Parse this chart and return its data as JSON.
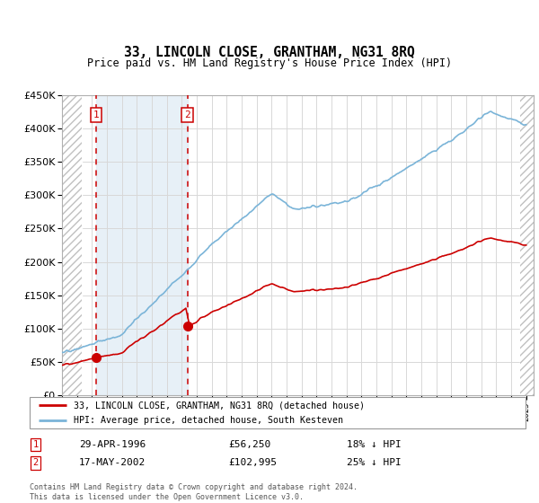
{
  "title": "33, LINCOLN CLOSE, GRANTHAM, NG31 8RQ",
  "subtitle": "Price paid vs. HM Land Registry's House Price Index (HPI)",
  "legend_line1": "33, LINCOLN CLOSE, GRANTHAM, NG31 8RQ (detached house)",
  "legend_line2": "HPI: Average price, detached house, South Kesteven",
  "transaction1_date": "29-APR-1996",
  "transaction1_price": "£56,250",
  "transaction1_hpi": "18% ↓ HPI",
  "transaction1_year": 1996.3,
  "transaction1_value": 56250,
  "transaction2_date": "17-MAY-2002",
  "transaction2_price": "£102,995",
  "transaction2_hpi": "25% ↓ HPI",
  "transaction2_year": 2002.37,
  "transaction2_value": 102995,
  "footer": "Contains HM Land Registry data © Crown copyright and database right 2024.\nThis data is licensed under the Open Government Licence v3.0.",
  "hpi_color": "#7ab4d8",
  "price_color": "#cc0000",
  "vline_color": "#cc0000",
  "shade_color": "#deeaf4",
  "ylim_max": 450000,
  "ylim_min": 0,
  "xlim_min": 1994.0,
  "xlim_max": 2025.5
}
